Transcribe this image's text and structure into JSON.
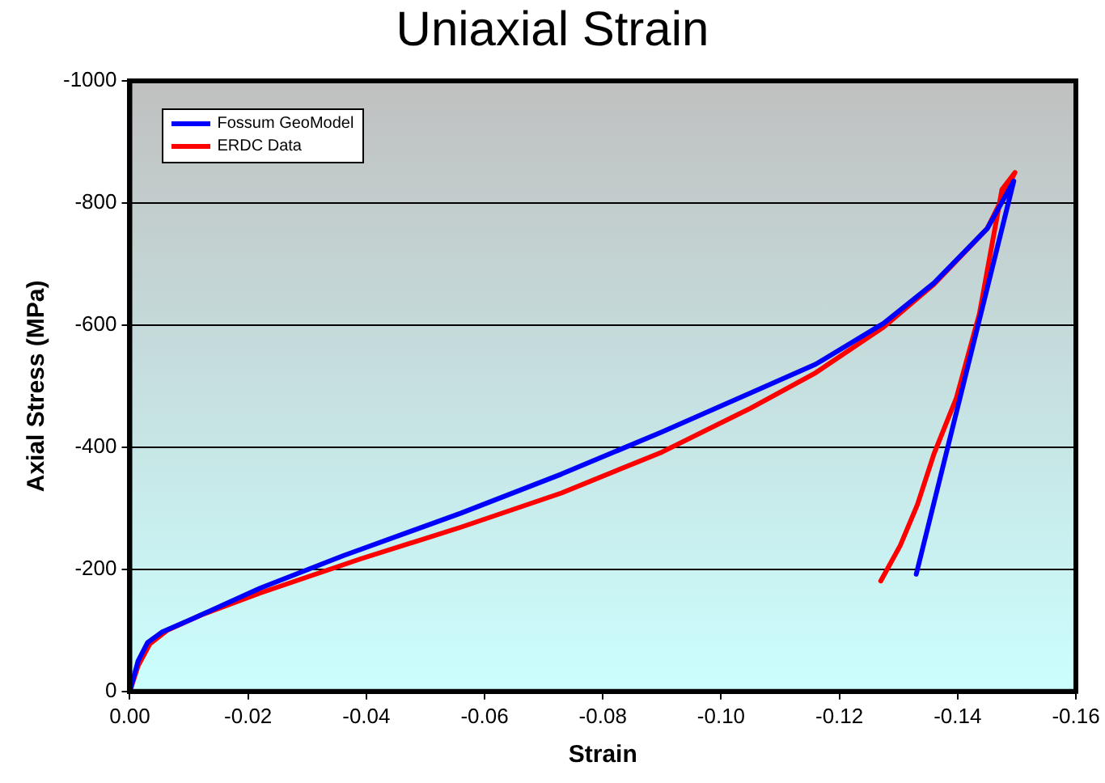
{
  "chart_data": {
    "type": "line",
    "title": "Uniaxial Strain",
    "xlabel": "Strain",
    "ylabel": "Axial Stress (MPa)",
    "xlim": [
      0,
      -0.16
    ],
    "xticks": [
      {
        "value": 0,
        "label": "0.00"
      },
      -0.02,
      -0.04,
      -0.06,
      -0.08,
      {
        "value": -0.1,
        "label": "-0.10"
      },
      -0.12,
      -0.14,
      -0.16
    ],
    "ylim": [
      0,
      -1000
    ],
    "yticks": [
      0,
      -200,
      -400,
      -600,
      -800,
      -1000
    ],
    "grid": "y",
    "legend": "top left",
    "marker": "none",
    "line_style": "solid",
    "series": [
      {
        "name": "Fossum GeoModel",
        "color": "#0000ff",
        "x": [
          0,
          -0.0014,
          -0.003,
          -0.0054,
          -0.0106,
          -0.022,
          -0.036,
          -0.056,
          -0.073,
          -0.09,
          -0.105,
          -0.116,
          -0.1275,
          -0.136,
          -0.145,
          -0.1495,
          -0.133
        ],
        "values": [
          0,
          -50,
          -80,
          -97,
          -119,
          -169,
          -222,
          -292,
          -356,
          -425,
          -489,
          -536,
          -603,
          -669,
          -758,
          -836,
          -192
        ]
      },
      {
        "name": "ERDC Data",
        "color": "#ff0000",
        "x": [
          0,
          -0.0014,
          -0.0034,
          -0.0063,
          -0.012,
          -0.022,
          -0.039,
          -0.056,
          -0.073,
          -0.09,
          -0.105,
          -0.116,
          -0.1275,
          -0.136,
          -0.145,
          -0.1497,
          -0.1475,
          -0.1437,
          -0.1398,
          -0.136,
          -0.1332,
          -0.1303,
          -0.127
        ],
        "values": [
          0,
          -42,
          -78,
          -100,
          -125,
          -161,
          -217,
          -269,
          -325,
          -392,
          -464,
          -522,
          -597,
          -667,
          -758,
          -850,
          -822,
          -619,
          -481,
          -389,
          -306,
          -239,
          -181
        ]
      }
    ]
  }
}
